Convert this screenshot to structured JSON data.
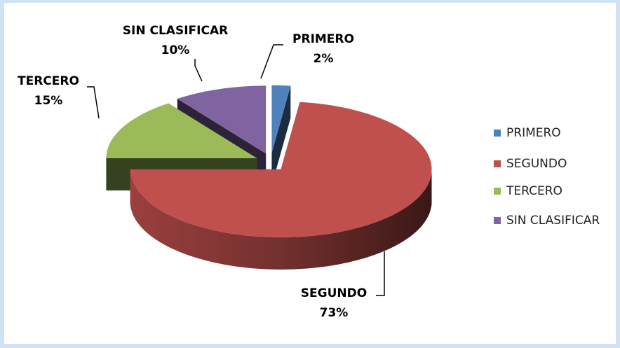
{
  "chart_data": {
    "type": "pie3d",
    "categories": [
      "PRIMERO",
      "SEGUNDO",
      "TERCERO",
      "SIN CLASIFICAR"
    ],
    "values": [
      2,
      73,
      15,
      10
    ],
    "value_labels": [
      "2%",
      "73%",
      "15%",
      "10%"
    ],
    "colors": [
      "#4f81bd",
      "#c0504d",
      "#9bbb59",
      "#8064a2"
    ],
    "legend": "right"
  }
}
